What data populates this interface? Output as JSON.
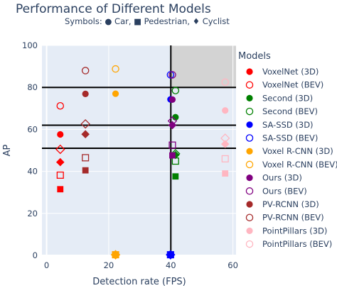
{
  "chart_data": {
    "type": "scatter",
    "title": "Performance of Different Models",
    "subtitle": "Symbols: ● Car, ■ Pedestrian, ♦ Cyclist",
    "xlabel": "Detection rate (FPS)",
    "ylabel": "AP",
    "xlim": [
      -1.5,
      61
    ],
    "ylim": [
      0,
      100
    ],
    "xticks": [
      0,
      20,
      40,
      60
    ],
    "yticks": [
      0,
      20,
      40,
      60,
      80,
      100
    ],
    "grid": true,
    "plot_background": "#e5ecf6",
    "legend": {
      "title": "Models",
      "position": "right"
    },
    "reference_lines": {
      "vertical_x": 40,
      "horizontal_y": [
        80,
        62,
        51
      ]
    },
    "highlight_region": {
      "x": [
        40,
        61
      ],
      "y": [
        80,
        100
      ],
      "color": "#d3d3d3"
    },
    "series": [
      {
        "name": "VoxelNet (3D)",
        "color": "#ff0000",
        "fill": true,
        "points": [
          {
            "x": 4.4,
            "y": 57.6,
            "symbol": "circle"
          },
          {
            "x": 4.4,
            "y": 31.5,
            "symbol": "square"
          },
          {
            "x": 4.4,
            "y": 44.4,
            "symbol": "diamond"
          }
        ]
      },
      {
        "name": "VoxelNet (BEV)",
        "color": "#ff0000",
        "fill": false,
        "points": [
          {
            "x": 4.4,
            "y": 71.2,
            "symbol": "circle"
          },
          {
            "x": 4.4,
            "y": 38.2,
            "symbol": "square"
          },
          {
            "x": 4.4,
            "y": 50.5,
            "symbol": "diamond"
          }
        ]
      },
      {
        "name": "Second (3D)",
        "color": "#008000",
        "fill": true,
        "points": [
          {
            "x": 41.5,
            "y": 65.8,
            "symbol": "circle"
          },
          {
            "x": 41.5,
            "y": 37.6,
            "symbol": "square"
          },
          {
            "x": 41.5,
            "y": 47.8,
            "symbol": "diamond"
          }
        ]
      },
      {
        "name": "Second (BEV)",
        "color": "#008000",
        "fill": false,
        "points": [
          {
            "x": 41.5,
            "y": 78.5,
            "symbol": "circle"
          },
          {
            "x": 41.5,
            "y": 44.9,
            "symbol": "square"
          },
          {
            "x": 41.5,
            "y": 48.4,
            "symbol": "diamond"
          }
        ]
      },
      {
        "name": "SA-SSD (3D)",
        "color": "#0000ff",
        "fill": true,
        "points": [
          {
            "x": 39.9,
            "y": 74.3,
            "symbol": "circle"
          },
          {
            "x": 39.9,
            "y": 0.3,
            "symbol": "square"
          },
          {
            "x": 39.9,
            "y": 0.3,
            "symbol": "diamond"
          }
        ]
      },
      {
        "name": "SA-SSD (BEV)",
        "color": "#0000ff",
        "fill": false,
        "points": [
          {
            "x": 39.9,
            "y": 86.0,
            "symbol": "circle"
          },
          {
            "x": 39.9,
            "y": 0.3,
            "symbol": "square"
          },
          {
            "x": 39.9,
            "y": 0.3,
            "symbol": "diamond"
          }
        ]
      },
      {
        "name": "Voxel R-CNN (3D)",
        "color": "#ffa500",
        "fill": true,
        "points": [
          {
            "x": 22.2,
            "y": 77.0,
            "symbol": "circle"
          },
          {
            "x": 22.2,
            "y": 0.3,
            "symbol": "square"
          },
          {
            "x": 22.2,
            "y": 0.3,
            "symbol": "diamond"
          }
        ]
      },
      {
        "name": "Voxel R-CNN (BEV)",
        "color": "#ffa500",
        "fill": false,
        "points": [
          {
            "x": 22.2,
            "y": 88.8,
            "symbol": "circle"
          },
          {
            "x": 22.2,
            "y": 0.3,
            "symbol": "square"
          },
          {
            "x": 22.2,
            "y": 0.3,
            "symbol": "diamond"
          }
        ]
      },
      {
        "name": "Ours (3D)",
        "color": "#800080",
        "fill": true,
        "points": [
          {
            "x": 40.5,
            "y": 74.2,
            "symbol": "circle"
          },
          {
            "x": 40.5,
            "y": 47.6,
            "symbol": "square"
          },
          {
            "x": 40.5,
            "y": 62.0,
            "symbol": "diamond"
          }
        ]
      },
      {
        "name": "Ours (BEV)",
        "color": "#800080",
        "fill": false,
        "points": [
          {
            "x": 40.5,
            "y": 86.0,
            "symbol": "circle"
          },
          {
            "x": 40.5,
            "y": 52.5,
            "symbol": "square"
          },
          {
            "x": 40.5,
            "y": 64.0,
            "symbol": "diamond"
          }
        ]
      },
      {
        "name": "PV-RCNN (3D)",
        "color": "#a52a2a",
        "fill": true,
        "points": [
          {
            "x": 12.5,
            "y": 76.9,
            "symbol": "circle"
          },
          {
            "x": 12.5,
            "y": 40.5,
            "symbol": "square"
          },
          {
            "x": 12.5,
            "y": 57.7,
            "symbol": "diamond"
          }
        ]
      },
      {
        "name": "PV-RCNN (BEV)",
        "color": "#a52a2a",
        "fill": false,
        "points": [
          {
            "x": 12.5,
            "y": 88.0,
            "symbol": "circle"
          },
          {
            "x": 12.5,
            "y": 46.5,
            "symbol": "square"
          },
          {
            "x": 12.5,
            "y": 62.6,
            "symbol": "diamond"
          }
        ]
      },
      {
        "name": "PointPillars (3D)",
        "color": "#ffb6c1",
        "fill": true,
        "points": [
          {
            "x": 57.5,
            "y": 69.0,
            "symbol": "circle"
          },
          {
            "x": 57.5,
            "y": 39.0,
            "symbol": "square"
          },
          {
            "x": 57.5,
            "y": 53.0,
            "symbol": "diamond"
          }
        ]
      },
      {
        "name": "PointPillars (BEV)",
        "color": "#ffb6c1",
        "fill": false,
        "points": [
          {
            "x": 57.5,
            "y": 82.5,
            "symbol": "circle"
          },
          {
            "x": 57.5,
            "y": 46.0,
            "symbol": "square"
          },
          {
            "x": 57.5,
            "y": 55.8,
            "symbol": "diamond"
          }
        ]
      }
    ]
  }
}
